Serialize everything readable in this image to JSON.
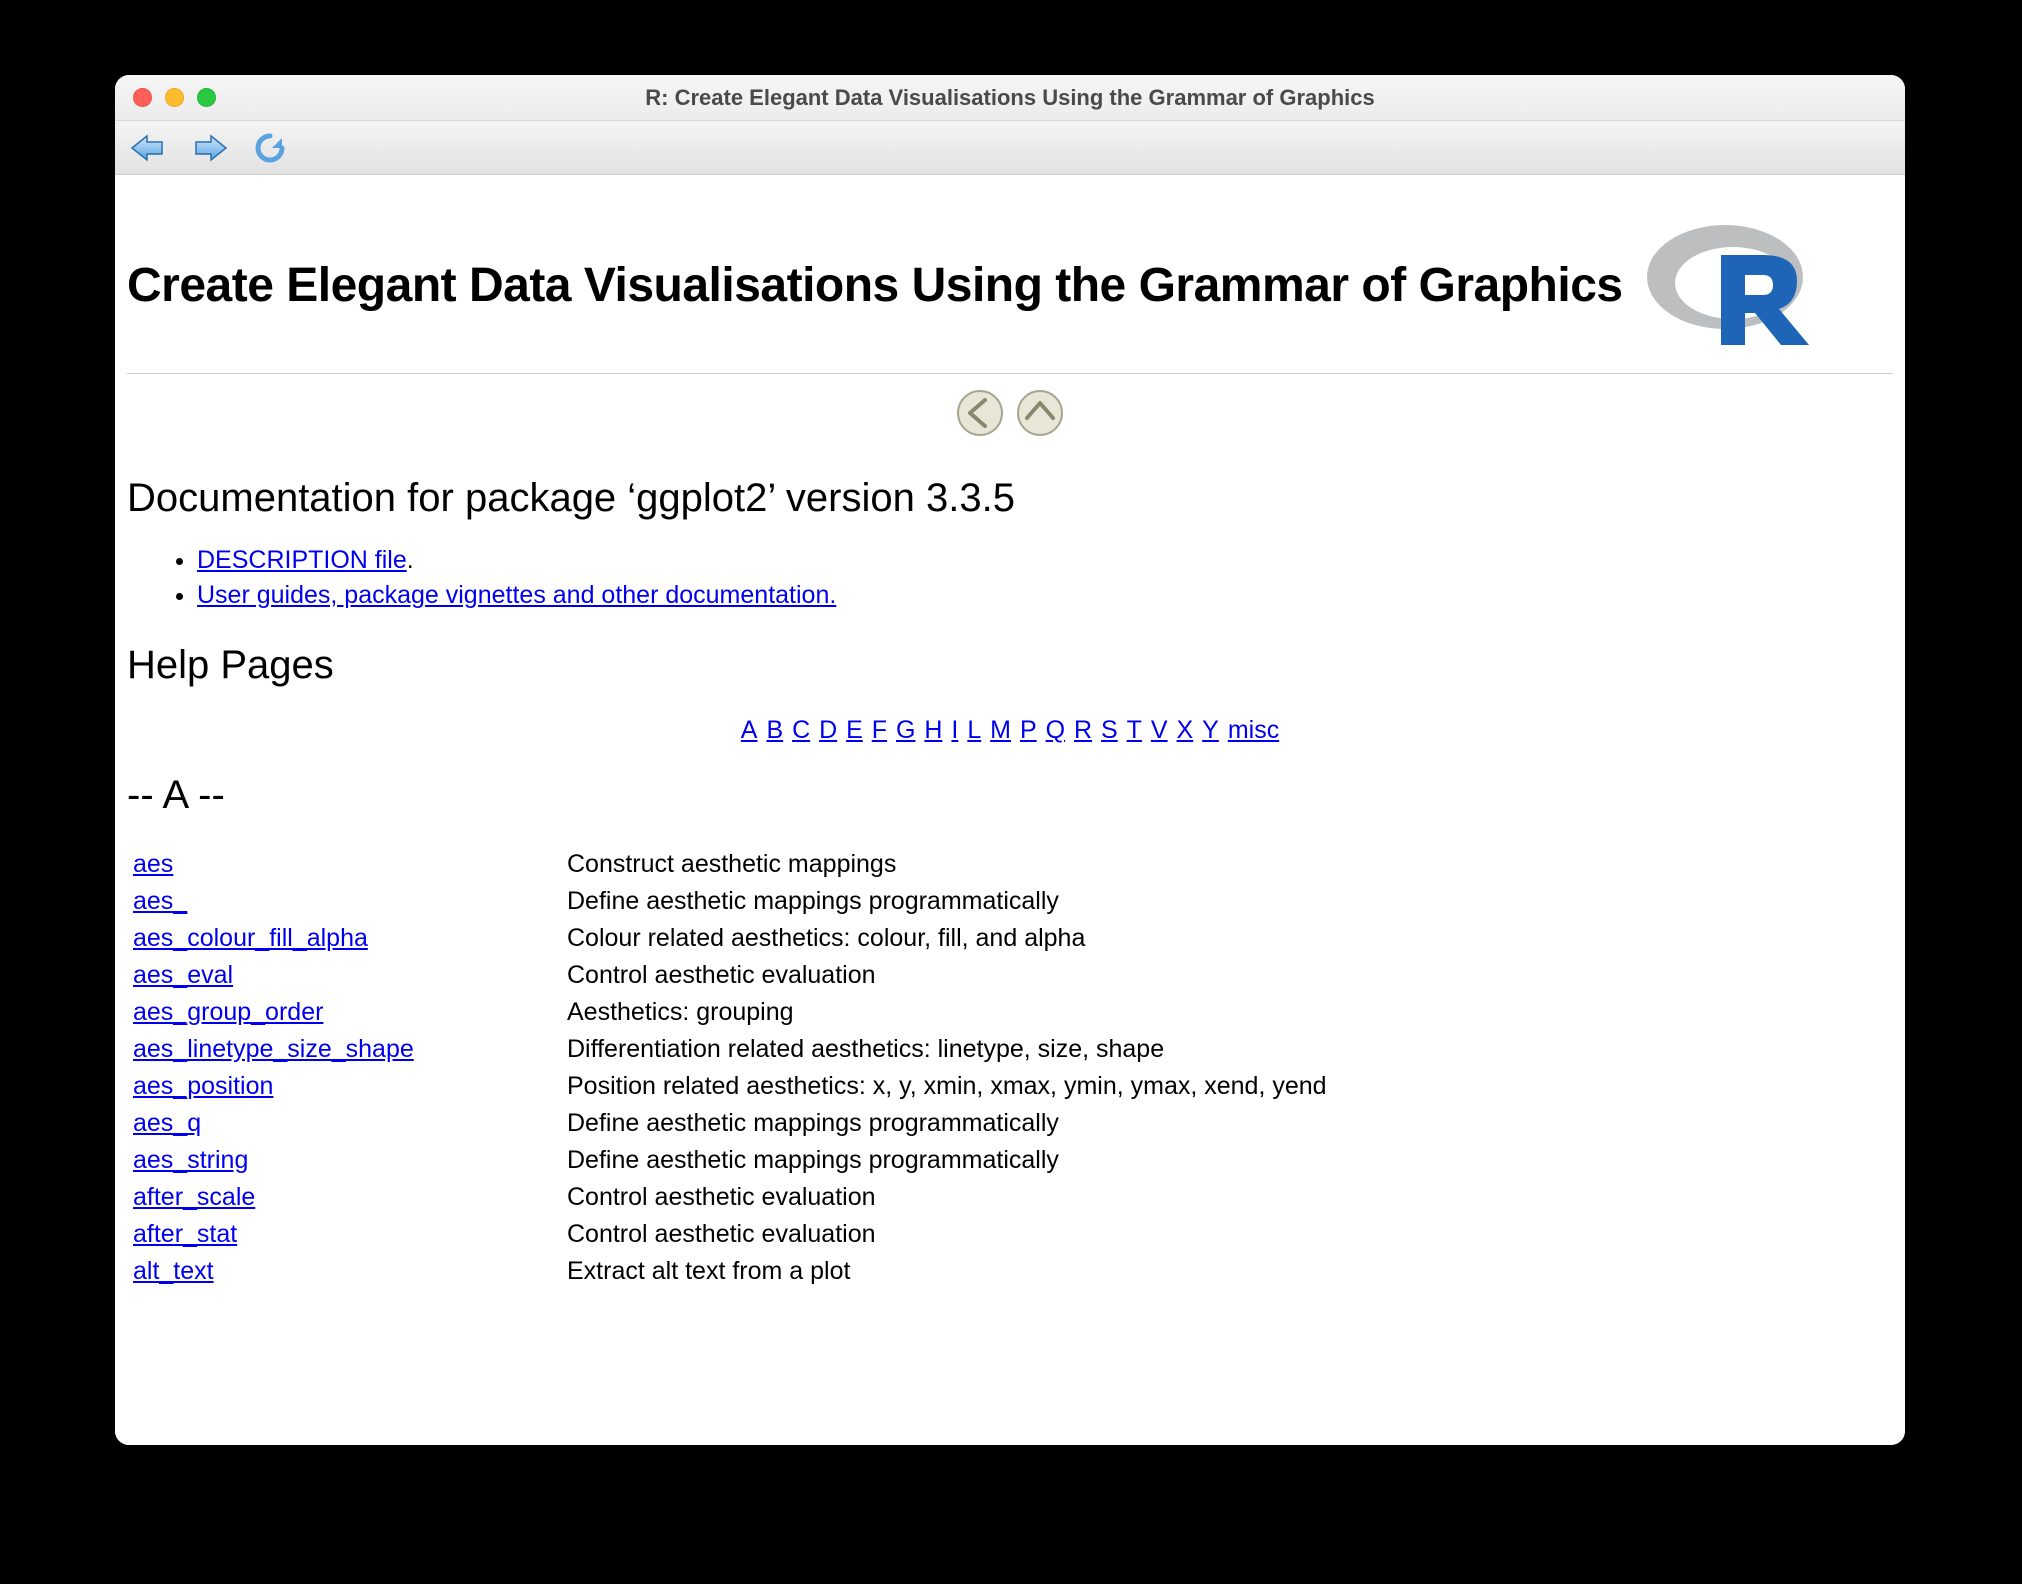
{
  "window": {
    "title": "R: Create Elegant Data Visualisations Using the Grammar of Graphics"
  },
  "page": {
    "heading": "Create Elegant Data Visualisations Using the Grammar of Graphics",
    "doc_heading": "Documentation for package ‘ggplot2’ version 3.3.5",
    "links": {
      "description": "DESCRIPTION file",
      "description_suffix": ".",
      "vignettes": "User guides, package vignettes and other documentation."
    },
    "help_heading": "Help Pages",
    "index_letters": [
      "A",
      "B",
      "C",
      "D",
      "E",
      "F",
      "G",
      "H",
      "I",
      "L",
      "M",
      "P",
      "Q",
      "R",
      "S",
      "T",
      "V",
      "X",
      "Y",
      "misc"
    ],
    "section_letter": "-- A --",
    "functions": [
      {
        "name": "aes",
        "desc": "Construct aesthetic mappings"
      },
      {
        "name": "aes_",
        "desc": "Define aesthetic mappings programmatically"
      },
      {
        "name": "aes_colour_fill_alpha",
        "desc": "Colour related aesthetics: colour, fill, and alpha"
      },
      {
        "name": "aes_eval",
        "desc": "Control aesthetic evaluation"
      },
      {
        "name": "aes_group_order",
        "desc": "Aesthetics: grouping"
      },
      {
        "name": "aes_linetype_size_shape",
        "desc": "Differentiation related aesthetics: linetype, size, shape"
      },
      {
        "name": "aes_position",
        "desc": "Position related aesthetics: x, y, xmin, xmax, ymin, ymax, xend, yend"
      },
      {
        "name": "aes_q",
        "desc": "Define aesthetic mappings programmatically"
      },
      {
        "name": "aes_string",
        "desc": "Define aesthetic mappings programmatically"
      },
      {
        "name": "after_scale",
        "desc": "Control aesthetic evaluation"
      },
      {
        "name": "after_stat",
        "desc": "Control aesthetic evaluation"
      },
      {
        "name": "alt_text",
        "desc": "Extract alt text from a plot"
      }
    ]
  },
  "colors": {
    "link": "#0000ee",
    "r_blue": "#1f65b7",
    "r_ring": "#bcbec0"
  }
}
